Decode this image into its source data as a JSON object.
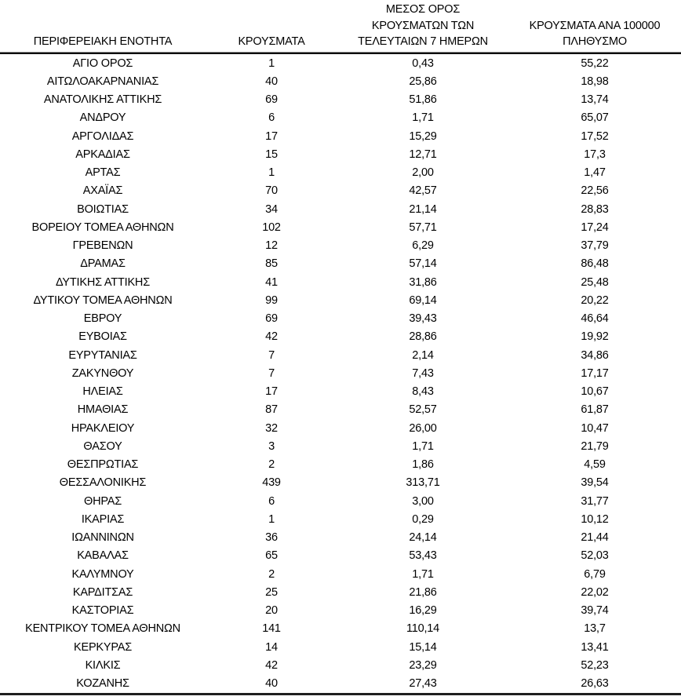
{
  "page": {
    "background_color": "#ffffff",
    "text_color": "#000000",
    "language": "el"
  },
  "table": {
    "headers": [
      {
        "name": "region",
        "label": "ΠΕΡΙΦΕΡΕΙΑΚΗ ΕΝΟΤΗΤΑ"
      },
      {
        "name": "cases",
        "label": "ΚΡΟΥΣΜΑΤΑ"
      },
      {
        "name": "avg7",
        "label": "ΜΕΣΟΣ ΟΡΟΣ\nΚΡΟΥΣΜΑΤΩΝ ΤΩΝ\nΤΕΛΕΥΤΑΙΩΝ 7 ΗΜΕΡΩΝ"
      },
      {
        "name": "per100k",
        "label": "ΚΡΟΥΣΜΑΤΑ ΑΝΑ 100000\nΠΛΗΘΥΣΜΟ"
      }
    ],
    "rows": [
      [
        "ΑΓΙΟ ΟΡΟΣ",
        "1",
        "0,43",
        "55,22"
      ],
      [
        "ΑΙΤΩΛΟΑΚΑΡΝΑΝΙΑΣ",
        "40",
        "25,86",
        "18,98"
      ],
      [
        "ΑΝΑΤΟΛΙΚΗΣ ΑΤΤΙΚΗΣ",
        "69",
        "51,86",
        "13,74"
      ],
      [
        "ΑΝΔΡΟΥ",
        "6",
        "1,71",
        "65,07"
      ],
      [
        "ΑΡΓΟΛΙΔΑΣ",
        "17",
        "15,29",
        "17,52"
      ],
      [
        "ΑΡΚΑΔΙΑΣ",
        "15",
        "12,71",
        "17,3"
      ],
      [
        "ΑΡΤΑΣ",
        "1",
        "2,00",
        "1,47"
      ],
      [
        "ΑΧΑΪΑΣ",
        "70",
        "42,57",
        "22,56"
      ],
      [
        "ΒΟΙΩΤΙΑΣ",
        "34",
        "21,14",
        "28,83"
      ],
      [
        "ΒΟΡΕΙΟΥ ΤΟΜΕΑ ΑΘΗΝΩΝ",
        "102",
        "57,71",
        "17,24"
      ],
      [
        "ΓΡΕΒΕΝΩΝ",
        "12",
        "6,29",
        "37,79"
      ],
      [
        "ΔΡΑΜΑΣ",
        "85",
        "57,14",
        "86,48"
      ],
      [
        "ΔΥΤΙΚΗΣ ΑΤΤΙΚΗΣ",
        "41",
        "31,86",
        "25,48"
      ],
      [
        "ΔΥΤΙΚΟΥ ΤΟΜΕΑ ΑΘΗΝΩΝ",
        "99",
        "69,14",
        "20,22"
      ],
      [
        "ΕΒΡΟΥ",
        "69",
        "39,43",
        "46,64"
      ],
      [
        "ΕΥΒΟΙΑΣ",
        "42",
        "28,86",
        "19,92"
      ],
      [
        "ΕΥΡΥΤΑΝΙΑΣ",
        "7",
        "2,14",
        "34,86"
      ],
      [
        "ΖΑΚΥΝΘΟΥ",
        "7",
        "7,43",
        "17,17"
      ],
      [
        "ΗΛΕΙΑΣ",
        "17",
        "8,43",
        "10,67"
      ],
      [
        "ΗΜΑΘΙΑΣ",
        "87",
        "52,57",
        "61,87"
      ],
      [
        "ΗΡΑΚΛΕΙΟΥ",
        "32",
        "26,00",
        "10,47"
      ],
      [
        "ΘΑΣΟΥ",
        "3",
        "1,71",
        "21,79"
      ],
      [
        "ΘΕΣΠΡΩΤΙΑΣ",
        "2",
        "1,86",
        "4,59"
      ],
      [
        "ΘΕΣΣΑΛΟΝΙΚΗΣ",
        "439",
        "313,71",
        "39,54"
      ],
      [
        "ΘΗΡΑΣ",
        "6",
        "3,00",
        "31,77"
      ],
      [
        "ΙΚΑΡΙΑΣ",
        "1",
        "0,29",
        "10,12"
      ],
      [
        "ΙΩΑΝΝΙΝΩΝ",
        "36",
        "24,14",
        "21,44"
      ],
      [
        "ΚΑΒΑΛΑΣ",
        "65",
        "53,43",
        "52,03"
      ],
      [
        "ΚΑΛΥΜΝΟΥ",
        "2",
        "1,71",
        "6,79"
      ],
      [
        "ΚΑΡΔΙΤΣΑΣ",
        "25",
        "21,86",
        "22,02"
      ],
      [
        "ΚΑΣΤΟΡΙΑΣ",
        "20",
        "16,29",
        "39,74"
      ],
      [
        "ΚΕΝΤΡΙΚΟΥ ΤΟΜΕΑ ΑΘΗΝΩΝ",
        "141",
        "110,14",
        "13,7"
      ],
      [
        "ΚΕΡΚΥΡΑΣ",
        "14",
        "15,14",
        "13,41"
      ],
      [
        "ΚΙΛΚΙΣ",
        "42",
        "23,29",
        "52,23"
      ],
      [
        "ΚΟΖΑΝΗΣ",
        "40",
        "27,43",
        "26,63"
      ]
    ]
  }
}
